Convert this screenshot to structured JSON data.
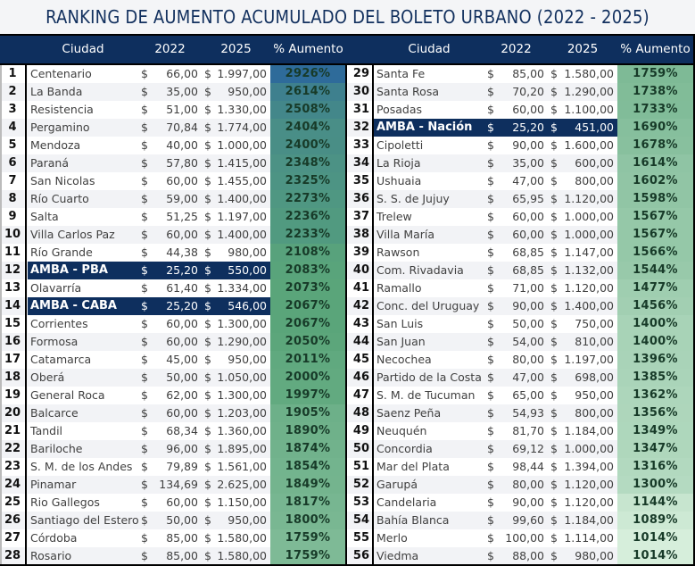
{
  "title": "RANKING DE AUMENTO ACUMULADO DEL BOLETO URBANO (2022 - 2025)",
  "headers": {
    "rank": "",
    "city": "Ciudad",
    "y2022": "2022",
    "y2025": "2025",
    "pct": "% Aumento"
  },
  "colors": {
    "header_bg": "#0e2f5e",
    "amba_bg": "#0e2f5e",
    "title_color": "#12305e",
    "heat_high": "#2e6b9a",
    "heat_mid": "#5aa57a",
    "heat_low": "#d6eedb"
  },
  "rows": [
    {
      "rank": "1",
      "city": "Centenario",
      "cur22": "$",
      "y2022": "66,00",
      "cur25": "$",
      "y2025": "1.997,00",
      "pct": "2926%",
      "amba": false
    },
    {
      "rank": "2",
      "city": "La Banda",
      "cur22": "$",
      "y2022": "35,00",
      "cur25": "$",
      "y2025": "950,00",
      "pct": "2614%",
      "amba": false
    },
    {
      "rank": "3",
      "city": "Resistencia",
      "cur22": "$",
      "y2022": "51,00",
      "cur25": "$",
      "y2025": "1.330,00",
      "pct": "2508%",
      "amba": false
    },
    {
      "rank": "4",
      "city": "Pergamino",
      "cur22": "$",
      "y2022": "70,84",
      "cur25": "$",
      "y2025": "1.774,00",
      "pct": "2404%",
      "amba": false
    },
    {
      "rank": "5",
      "city": "Mendoza",
      "cur22": "$",
      "y2022": "40,00",
      "cur25": "$",
      "y2025": "1.000,00",
      "pct": "2400%",
      "amba": false
    },
    {
      "rank": "6",
      "city": "Paraná",
      "cur22": "$",
      "y2022": "57,80",
      "cur25": "$",
      "y2025": "1.415,00",
      "pct": "2348%",
      "amba": false
    },
    {
      "rank": "7",
      "city": "San Nicolas",
      "cur22": "$",
      "y2022": "60,00",
      "cur25": "$",
      "y2025": "1.455,00",
      "pct": "2325%",
      "amba": false
    },
    {
      "rank": "8",
      "city": "Río Cuarto",
      "cur22": "$",
      "y2022": "59,00",
      "cur25": "$",
      "y2025": "1.400,00",
      "pct": "2273%",
      "amba": false
    },
    {
      "rank": "9",
      "city": "Salta",
      "cur22": "$",
      "y2022": "51,25",
      "cur25": "$",
      "y2025": "1.197,00",
      "pct": "2236%",
      "amba": false
    },
    {
      "rank": "10",
      "city": "Villa Carlos Paz",
      "cur22": "$",
      "y2022": "60,00",
      "cur25": "$",
      "y2025": "1.400,00",
      "pct": "2233%",
      "amba": false
    },
    {
      "rank": "11",
      "city": "Río Grande",
      "cur22": "$",
      "y2022": "44,38",
      "cur25": "$",
      "y2025": "980,00",
      "pct": "2108%",
      "amba": false
    },
    {
      "rank": "12",
      "city": "AMBA - PBA",
      "cur22": "$",
      "y2022": "25,20",
      "cur25": "$",
      "y2025": "550,00",
      "pct": "2083%",
      "amba": true
    },
    {
      "rank": "13",
      "city": "Olavarría",
      "cur22": "$",
      "y2022": "61,40",
      "cur25": "$",
      "y2025": "1.334,00",
      "pct": "2073%",
      "amba": false
    },
    {
      "rank": "14",
      "city": "AMBA - CABA",
      "cur22": "$",
      "y2022": "25,20",
      "cur25": "$",
      "y2025": "546,00",
      "pct": "2067%",
      "amba": true
    },
    {
      "rank": "15",
      "city": "Corrientes",
      "cur22": "$",
      "y2022": "60,00",
      "cur25": "$",
      "y2025": "1.300,00",
      "pct": "2067%",
      "amba": false
    },
    {
      "rank": "16",
      "city": "Formosa",
      "cur22": "$",
      "y2022": "60,00",
      "cur25": "$",
      "y2025": "1.290,00",
      "pct": "2050%",
      "amba": false
    },
    {
      "rank": "17",
      "city": "Catamarca",
      "cur22": "$",
      "y2022": "45,00",
      "cur25": "$",
      "y2025": "950,00",
      "pct": "2011%",
      "amba": false
    },
    {
      "rank": "18",
      "city": "Oberá",
      "cur22": "$",
      "y2022": "50,00",
      "cur25": "$",
      "y2025": "1.050,00",
      "pct": "2000%",
      "amba": false
    },
    {
      "rank": "19",
      "city": "General Roca",
      "cur22": "$",
      "y2022": "62,00",
      "cur25": "$",
      "y2025": "1.300,00",
      "pct": "1997%",
      "amba": false
    },
    {
      "rank": "20",
      "city": "Balcarce",
      "cur22": "$",
      "y2022": "60,00",
      "cur25": "$",
      "y2025": "1.203,00",
      "pct": "1905%",
      "amba": false
    },
    {
      "rank": "21",
      "city": "Tandil",
      "cur22": "$",
      "y2022": "68,34",
      "cur25": "$",
      "y2025": "1.360,00",
      "pct": "1890%",
      "amba": false
    },
    {
      "rank": "22",
      "city": "Bariloche",
      "cur22": "$",
      "y2022": "96,00",
      "cur25": "$",
      "y2025": "1.895,00",
      "pct": "1874%",
      "amba": false
    },
    {
      "rank": "23",
      "city": "S. M. de los Andes",
      "cur22": "$",
      "y2022": "79,89",
      "cur25": "$",
      "y2025": "1.561,00",
      "pct": "1854%",
      "amba": false
    },
    {
      "rank": "24",
      "city": "Pinamar",
      "cur22": "$",
      "y2022": "134,69",
      "cur25": "$",
      "y2025": "2.625,00",
      "pct": "1849%",
      "amba": false
    },
    {
      "rank": "25",
      "city": "Rio Gallegos",
      "cur22": "$",
      "y2022": "60,00",
      "cur25": "$",
      "y2025": "1.150,00",
      "pct": "1817%",
      "amba": false
    },
    {
      "rank": "26",
      "city": "Santiago del Estero",
      "cur22": "$",
      "y2022": "50,00",
      "cur25": "$",
      "y2025": "950,00",
      "pct": "1800%",
      "amba": false
    },
    {
      "rank": "27",
      "city": "Córdoba",
      "cur22": "$",
      "y2022": "85,00",
      "cur25": "$",
      "y2025": "1.580,00",
      "pct": "1759%",
      "amba": false
    },
    {
      "rank": "28",
      "city": "Rosario",
      "cur22": "$",
      "y2022": "85,00",
      "cur25": "$",
      "y2025": "1.580,00",
      "pct": "1759%",
      "amba": false
    },
    {
      "rank": "29",
      "city": "Santa Fe",
      "cur22": "$",
      "y2022": "85,00",
      "cur25": "$",
      "y2025": "1.580,00",
      "pct": "1759%",
      "amba": false
    },
    {
      "rank": "30",
      "city": "Santa Rosa",
      "cur22": "$",
      "y2022": "70,20",
      "cur25": "$",
      "y2025": "1.290,00",
      "pct": "1738%",
      "amba": false
    },
    {
      "rank": "31",
      "city": "Posadas",
      "cur22": "$",
      "y2022": "60,00",
      "cur25": "$",
      "y2025": "1.100,00",
      "pct": "1733%",
      "amba": false
    },
    {
      "rank": "32",
      "city": "AMBA - Nación",
      "cur22": "$",
      "y2022": "25,20",
      "cur25": "$",
      "y2025": "451,00",
      "pct": "1690%",
      "amba": true
    },
    {
      "rank": "33",
      "city": "Cipoletti",
      "cur22": "$",
      "y2022": "90,00",
      "cur25": "$",
      "y2025": "1.600,00",
      "pct": "1678%",
      "amba": false
    },
    {
      "rank": "34",
      "city": "La Rioja",
      "cur22": "$",
      "y2022": "35,00",
      "cur25": "$",
      "y2025": "600,00",
      "pct": "1614%",
      "amba": false
    },
    {
      "rank": "35",
      "city": "Ushuaia",
      "cur22": "$",
      "y2022": "47,00",
      "cur25": "$",
      "y2025": "800,00",
      "pct": "1602%",
      "amba": false
    },
    {
      "rank": "36",
      "city": "S. S. de Jujuy",
      "cur22": "$",
      "y2022": "65,95",
      "cur25": "$",
      "y2025": "1.120,00",
      "pct": "1598%",
      "amba": false
    },
    {
      "rank": "37",
      "city": "Trelew",
      "cur22": "$",
      "y2022": "60,00",
      "cur25": "$",
      "y2025": "1.000,00",
      "pct": "1567%",
      "amba": false
    },
    {
      "rank": "38",
      "city": "Villa María",
      "cur22": "$",
      "y2022": "60,00",
      "cur25": "$",
      "y2025": "1.000,00",
      "pct": "1567%",
      "amba": false
    },
    {
      "rank": "39",
      "city": "Rawson",
      "cur22": "$",
      "y2022": "68,85",
      "cur25": "$",
      "y2025": "1.147,00",
      "pct": "1566%",
      "amba": false
    },
    {
      "rank": "40",
      "city": "Com. Rivadavia",
      "cur22": "$",
      "y2022": "68,85",
      "cur25": "$",
      "y2025": "1.132,00",
      "pct": "1544%",
      "amba": false
    },
    {
      "rank": "41",
      "city": "Ramallo",
      "cur22": "$",
      "y2022": "71,00",
      "cur25": "$",
      "y2025": "1.120,00",
      "pct": "1477%",
      "amba": false
    },
    {
      "rank": "42",
      "city": "Conc. del Uruguay",
      "cur22": "$",
      "y2022": "90,00",
      "cur25": "$",
      "y2025": "1.400,00",
      "pct": "1456%",
      "amba": false
    },
    {
      "rank": "43",
      "city": "San Luis",
      "cur22": "$",
      "y2022": "50,00",
      "cur25": "$",
      "y2025": "750,00",
      "pct": "1400%",
      "amba": false
    },
    {
      "rank": "44",
      "city": "San Juan",
      "cur22": "$",
      "y2022": "54,00",
      "cur25": "$",
      "y2025": "810,00",
      "pct": "1400%",
      "amba": false
    },
    {
      "rank": "45",
      "city": "Necochea",
      "cur22": "$",
      "y2022": "80,00",
      "cur25": "$",
      "y2025": "1.197,00",
      "pct": "1396%",
      "amba": false
    },
    {
      "rank": "46",
      "city": "Partido de la Costa",
      "cur22": "$",
      "y2022": "47,00",
      "cur25": "$",
      "y2025": "698,00",
      "pct": "1385%",
      "amba": false
    },
    {
      "rank": "47",
      "city": "S. M. de Tucuman",
      "cur22": "$",
      "y2022": "65,00",
      "cur25": "$",
      "y2025": "950,00",
      "pct": "1362%",
      "amba": false
    },
    {
      "rank": "48",
      "city": "Saenz Peña",
      "cur22": "$",
      "y2022": "54,93",
      "cur25": "$",
      "y2025": "800,00",
      "pct": "1356%",
      "amba": false
    },
    {
      "rank": "49",
      "city": "Neuquén",
      "cur22": "$",
      "y2022": "81,70",
      "cur25": "$",
      "y2025": "1.184,00",
      "pct": "1349%",
      "amba": false
    },
    {
      "rank": "50",
      "city": "Concordia",
      "cur22": "$",
      "y2022": "69,12",
      "cur25": "$",
      "y2025": "1.000,00",
      "pct": "1347%",
      "amba": false
    },
    {
      "rank": "51",
      "city": "Mar del Plata",
      "cur22": "$",
      "y2022": "98,44",
      "cur25": "$",
      "y2025": "1.394,00",
      "pct": "1316%",
      "amba": false
    },
    {
      "rank": "52",
      "city": "Garupá",
      "cur22": "$",
      "y2022": "80,00",
      "cur25": "$",
      "y2025": "1.120,00",
      "pct": "1300%",
      "amba": false
    },
    {
      "rank": "53",
      "city": "Candelaria",
      "cur22": "$",
      "y2022": "90,00",
      "cur25": "$",
      "y2025": "1.120,00",
      "pct": "1144%",
      "amba": false
    },
    {
      "rank": "54",
      "city": "Bahía Blanca",
      "cur22": "$",
      "y2022": "99,60",
      "cur25": "$",
      "y2025": "1.184,00",
      "pct": "1089%",
      "amba": false
    },
    {
      "rank": "55",
      "city": "Merlo",
      "cur22": "$",
      "y2022": "100,00",
      "cur25": "$",
      "y2025": "1.114,00",
      "pct": "1014%",
      "amba": false
    },
    {
      "rank": "56",
      "city": "Viedma",
      "cur22": "$",
      "y2022": "88,00",
      "cur25": "$",
      "y2025": "980,00",
      "pct": "1014%",
      "amba": false
    }
  ]
}
